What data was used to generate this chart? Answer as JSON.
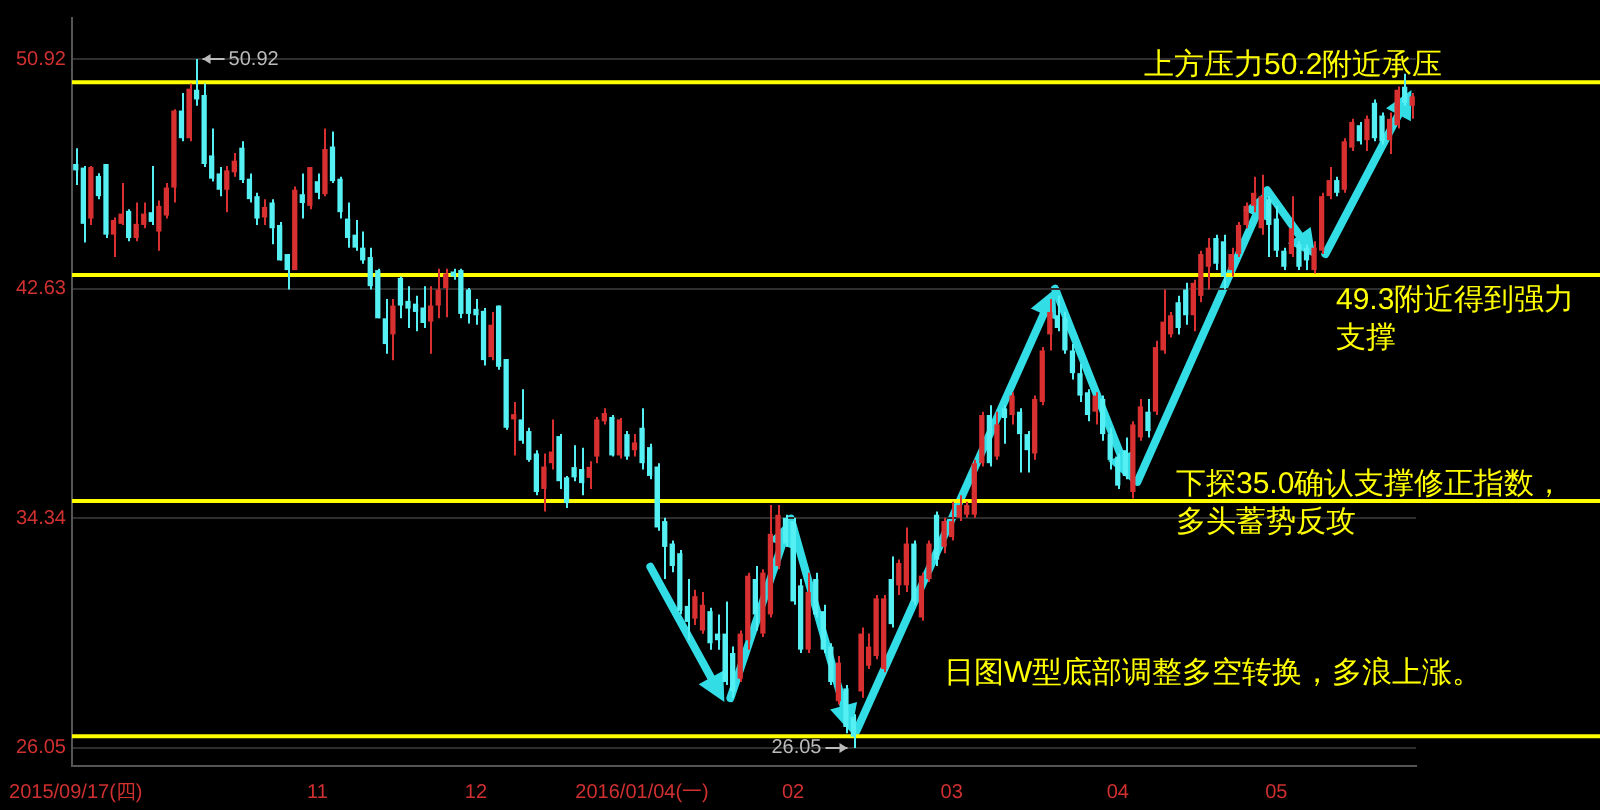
{
  "chart_data": {
    "type": "candlestick",
    "categories": [
      "2015/09/17(四)",
      null,
      null,
      null,
      null,
      null,
      null,
      null,
      null,
      null,
      null,
      null,
      null,
      null,
      null,
      null,
      null,
      null,
      null,
      null,
      null,
      null,
      null,
      null,
      null,
      null,
      null,
      null,
      null,
      null,
      null,
      null,
      "11",
      null,
      null,
      null,
      null,
      null,
      null,
      null,
      null,
      null,
      null,
      null,
      null,
      null,
      null,
      null,
      null,
      null,
      null,
      null,
      null,
      "12",
      null,
      null,
      null,
      null,
      null,
      null,
      null,
      null,
      null,
      null,
      null,
      null,
      null,
      null,
      null,
      null,
      null,
      null,
      null,
      null,
      null,
      "2016/01/04(一)",
      null,
      null,
      null,
      null,
      null,
      null,
      null,
      null,
      null,
      null,
      null,
      null,
      null,
      null,
      null,
      null,
      null,
      null,
      null,
      "02",
      null,
      null,
      null,
      null,
      null,
      null,
      null,
      null,
      null,
      null,
      null,
      null,
      null,
      null,
      null,
      null,
      null,
      null,
      null,
      null,
      "03",
      null,
      null,
      null,
      null,
      null,
      null,
      null,
      null,
      null,
      null,
      null,
      null,
      null,
      null,
      null,
      null,
      null,
      null,
      null,
      null,
      null,
      "04",
      null,
      null,
      null,
      null,
      null,
      null,
      null,
      null,
      null,
      null,
      null,
      null,
      null,
      null,
      null,
      null,
      null,
      null,
      null,
      null,
      "05",
      null,
      null,
      null,
      null,
      null,
      null,
      null,
      null,
      null,
      null,
      null,
      null,
      null,
      null,
      null,
      null,
      null,
      null
    ],
    "ohlc": [
      [
        47.13,
        47.7,
        46.37,
        46.9
      ],
      [
        47.0,
        47.06,
        44.3,
        44.97
      ],
      [
        45.16,
        47.06,
        44.93,
        47.02
      ],
      [
        46.7,
        46.8,
        45.86,
        45.97
      ],
      [
        47.13,
        47.13,
        44.46,
        44.58
      ],
      [
        44.58,
        45.2,
        43.77,
        45.11
      ],
      [
        44.97,
        46.44,
        44.93,
        45.34
      ],
      [
        45.44,
        45.5,
        44.34,
        44.46
      ],
      [
        44.46,
        45.74,
        44.34,
        44.97
      ],
      [
        44.93,
        45.74,
        44.81,
        45.34
      ],
      [
        45.39,
        47.06,
        44.93,
        45.04
      ],
      [
        44.69,
        45.81,
        44.0,
        45.62
      ],
      [
        45.27,
        46.44,
        45.16,
        46.28
      ],
      [
        46.28,
        49.11,
        45.74,
        49.06
      ],
      [
        49.06,
        49.69,
        47.95,
        48.06
      ],
      [
        48.06,
        50.04,
        47.95,
        49.85
      ],
      [
        49.81,
        50.92,
        49.23,
        49.46
      ],
      [
        49.62,
        50.04,
        47.02,
        47.13
      ],
      [
        47.44,
        48.41,
        46.5,
        46.6
      ],
      [
        46.79,
        47.02,
        45.97,
        46.2
      ],
      [
        46.2,
        47.06,
        45.39,
        46.9
      ],
      [
        46.83,
        47.53,
        46.67,
        47.25
      ],
      [
        47.72,
        47.95,
        46.44,
        46.55
      ],
      [
        46.6,
        46.79,
        45.74,
        45.86
      ],
      [
        45.97,
        46.09,
        44.93,
        45.16
      ],
      [
        45.2,
        45.86,
        44.93,
        45.58
      ],
      [
        45.74,
        45.86,
        44.23,
        44.81
      ],
      [
        44.93,
        45.04,
        43.65,
        43.65
      ],
      [
        43.88,
        43.88,
        42.6,
        43.3
      ],
      [
        43.3,
        46.32,
        43.3,
        46.2
      ],
      [
        46.04,
        46.79,
        45.16,
        45.72
      ],
      [
        45.62,
        47.02,
        45.5,
        47.02
      ],
      [
        46.51,
        46.79,
        45.86,
        46.09
      ],
      [
        46.04,
        48.41,
        45.97,
        47.67
      ],
      [
        47.76,
        48.3,
        46.44,
        46.51
      ],
      [
        46.6,
        46.67,
        45.16,
        45.39
      ],
      [
        45.16,
        45.74,
        44.11,
        44.46
      ],
      [
        44.58,
        45.11,
        44.0,
        44.11
      ],
      [
        44.11,
        44.69,
        43.53,
        43.65
      ],
      [
        43.77,
        44.11,
        42.6,
        42.72
      ],
      [
        43.3,
        43.35,
        41.56,
        41.56
      ],
      [
        41.56,
        42.26,
        40.28,
        40.63
      ],
      [
        40.98,
        42.26,
        40.05,
        42.02
      ],
      [
        43.02,
        43.07,
        41.56,
        42.02
      ],
      [
        42.19,
        42.72,
        41.21,
        41.91
      ],
      [
        42.09,
        42.37,
        41.09,
        41.79
      ],
      [
        41.95,
        42.72,
        41.21,
        41.39
      ],
      [
        41.44,
        42.72,
        40.28,
        42.02
      ],
      [
        42.02,
        43.35,
        41.56,
        42.6
      ],
      [
        42.65,
        43.35,
        41.6,
        43.18
      ],
      [
        43.25,
        43.35,
        42.95,
        43.07
      ],
      [
        43.3,
        43.35,
        41.56,
        41.72
      ],
      [
        42.6,
        42.65,
        41.37,
        41.72
      ],
      [
        41.9,
        42.26,
        41.33,
        41.67
      ],
      [
        41.83,
        41.93,
        39.86,
        40.05
      ],
      [
        40.16,
        41.79,
        40.05,
        41.33
      ],
      [
        42.02,
        42.02,
        39.7,
        39.81
      ],
      [
        40.09,
        40.09,
        37.54,
        37.61
      ],
      [
        37.91,
        38.54,
        36.61,
        38.1
      ],
      [
        37.91,
        39.0,
        37.03,
        37.14
      ],
      [
        37.49,
        37.61,
        36.38,
        36.45
      ],
      [
        36.68,
        36.8,
        35.17,
        35.29
      ],
      [
        35.4,
        36.68,
        34.59,
        36.21
      ],
      [
        36.33,
        37.91,
        36.1,
        36.75
      ],
      [
        37.31,
        37.38,
        35.4,
        35.68
      ],
      [
        35.82,
        35.87,
        34.71,
        34.89
      ],
      [
        36.19,
        36.98,
        35.68,
        35.82
      ],
      [
        36.12,
        36.89,
        35.17,
        35.61
      ],
      [
        35.8,
        36.4,
        35.4,
        36.2
      ],
      [
        36.57,
        38.0,
        36.33,
        37.91
      ],
      [
        37.84,
        38.31,
        37.73,
        38.14
      ],
      [
        38.0,
        38.07,
        36.57,
        36.61
      ],
      [
        36.61,
        37.96,
        36.5,
        37.91
      ],
      [
        37.38,
        37.49,
        36.45,
        36.57
      ],
      [
        36.8,
        37.38,
        36.57,
        37.08
      ],
      [
        37.61,
        38.31,
        36.1,
        36.33
      ],
      [
        36.91,
        37.03,
        35.75,
        35.87
      ],
      [
        36.21,
        36.33,
        33.89,
        34.01
      ],
      [
        34.24,
        34.36,
        32.15,
        33.31
      ],
      [
        33.43,
        33.54,
        32.39,
        32.62
      ],
      [
        33.08,
        33.2,
        30.88,
        31.0
      ],
      [
        31.18,
        32.15,
        29.94,
        30.6
      ],
      [
        30.72,
        31.76,
        30.49,
        31.53
      ],
      [
        30.29,
        31.68,
        30.17,
        31.22
      ],
      [
        30.99,
        31.11,
        29.6,
        29.83
      ],
      [
        30.18,
        30.87,
        29.6,
        29.94
      ],
      [
        30.18,
        31.34,
        28.32,
        28.43
      ],
      [
        29.48,
        29.71,
        27.86,
        28.09
      ],
      [
        28.55,
        30.29,
        28.43,
        30.18
      ],
      [
        29.94,
        32.38,
        29.6,
        32.27
      ],
      [
        32.15,
        32.62,
        30.29,
        30.87
      ],
      [
        30.18,
        32.5,
        30.06,
        32.38
      ],
      [
        30.87,
        34.82,
        30.76,
        33.78
      ],
      [
        32.62,
        34.82,
        32.5,
        34.47
      ],
      [
        34.36,
        34.47,
        33.31,
        33.43
      ],
      [
        34.24,
        34.36,
        31.22,
        31.34
      ],
      [
        31.92,
        32.15,
        29.48,
        29.6
      ],
      [
        29.6,
        32.38,
        29.48,
        31.68
      ],
      [
        32.15,
        32.38,
        30.76,
        30.87
      ],
      [
        30.99,
        31.22,
        29.48,
        29.6
      ],
      [
        29.71,
        29.83,
        28.32,
        28.43
      ],
      [
        27.74,
        29.37,
        27.62,
        29.13
      ],
      [
        28.2,
        28.32,
        26.58,
        26.81
      ],
      [
        27.16,
        27.27,
        26.05,
        26.46
      ],
      [
        28.09,
        30.4,
        27.86,
        30.18
      ],
      [
        29.02,
        30.18,
        28.9,
        29.71
      ],
      [
        29.37,
        31.57,
        29.25,
        31.45
      ],
      [
        28.9,
        31.57,
        28.78,
        31.45
      ],
      [
        32.15,
        32.96,
        30.4,
        30.52
      ],
      [
        31.92,
        32.85,
        31.57,
        32.73
      ],
      [
        31.92,
        34.01,
        31.68,
        33.43
      ],
      [
        33.43,
        33.54,
        31.22,
        31.34
      ],
      [
        30.76,
        32.38,
        30.64,
        32.27
      ],
      [
        32.15,
        33.54,
        32.04,
        33.43
      ],
      [
        34.47,
        34.59,
        32.62,
        32.85
      ],
      [
        33.31,
        34.36,
        33.08,
        34.24
      ],
      [
        33.66,
        34.94,
        33.54,
        34.24
      ],
      [
        34.36,
        35.17,
        34.24,
        34.82
      ],
      [
        34.47,
        34.94,
        34.36,
        34.82
      ],
      [
        34.47,
        36.45,
        34.36,
        36.33
      ],
      [
        36.33,
        38.19,
        36.21,
        38.07
      ],
      [
        38.07,
        38.42,
        36.21,
        36.33
      ],
      [
        36.57,
        38.19,
        36.45,
        37.73
      ],
      [
        38.31,
        38.42,
        37.03,
        37.96
      ],
      [
        38.07,
        38.89,
        37.73,
        38.77
      ],
      [
        38.19,
        38.31,
        35.99,
        37.38
      ],
      [
        37.38,
        37.49,
        35.99,
        36.8
      ],
      [
        36.68,
        38.77,
        36.45,
        38.65
      ],
      [
        38.54,
        40.52,
        38.42,
        40.4
      ],
      [
        40.98,
        42.26,
        40.4,
        41.79
      ],
      [
        41.67,
        42.37,
        41.09,
        41.21
      ],
      [
        41.56,
        41.79,
        40.28,
        40.4
      ],
      [
        40.4,
        40.63,
        39.35,
        39.58
      ],
      [
        39.58,
        39.93,
        38.54,
        38.77
      ],
      [
        38.89,
        39.0,
        37.84,
        38.07
      ],
      [
        38.19,
        38.89,
        37.73,
        38.77
      ],
      [
        38.65,
        38.77,
        37.14,
        37.38
      ],
      [
        37.38,
        37.61,
        36.1,
        36.45
      ],
      [
        36.57,
        36.68,
        35.4,
        35.52
      ],
      [
        36.8,
        37.26,
        35.75,
        35.87
      ],
      [
        35.29,
        37.84,
        35.06,
        37.73
      ],
      [
        37.26,
        38.65,
        37.14,
        38.38
      ],
      [
        38.19,
        38.65,
        37.26,
        37.49
      ],
      [
        38.19,
        40.75,
        38.07,
        40.52
      ],
      [
        40.4,
        42.6,
        40.28,
        41.44
      ],
      [
        40.98,
        41.79,
        40.87,
        41.67
      ],
      [
        42.14,
        42.37,
        40.98,
        41.21
      ],
      [
        42.6,
        42.84,
        41.33,
        41.67
      ],
      [
        41.67,
        42.95,
        41.09,
        42.84
      ],
      [
        42.37,
        44.0,
        42.14,
        43.88
      ],
      [
        43.42,
        44.46,
        42.6,
        44.11
      ],
      [
        44.46,
        44.58,
        43.3,
        43.53
      ],
      [
        44.34,
        44.58,
        42.6,
        43.07
      ],
      [
        43.3,
        44.11,
        43.07,
        43.88
      ],
      [
        43.88,
        45.04,
        43.77,
        44.93
      ],
      [
        44.93,
        45.74,
        44.81,
        45.62
      ],
      [
        45.62,
        46.67,
        45.39,
        46.09
      ],
      [
        44.81,
        46.74,
        44.58,
        45.97
      ],
      [
        45.86,
        45.97,
        43.77,
        44.93
      ],
      [
        45.16,
        45.62,
        43.77,
        44.0
      ],
      [
        44.0,
        44.11,
        43.3,
        43.42
      ],
      [
        43.88,
        45.97,
        43.77,
        44.81
      ],
      [
        44.23,
        44.34,
        43.3,
        43.42
      ],
      [
        44.11,
        44.23,
        43.3,
        43.65
      ],
      [
        43.3,
        44.34,
        43.18,
        44.11
      ],
      [
        44.0,
        46.09,
        43.88,
        45.97
      ],
      [
        45.97,
        47.02,
        45.86,
        46.55
      ],
      [
        46.55,
        46.67,
        45.97,
        46.09
      ],
      [
        46.2,
        48.06,
        46.09,
        47.95
      ],
      [
        47.72,
        48.76,
        47.6,
        48.65
      ],
      [
        48.53,
        48.65,
        47.83,
        47.95
      ],
      [
        47.99,
        48.88,
        47.6,
        48.76
      ],
      [
        49.34,
        49.46,
        47.95,
        48.06
      ],
      [
        48.88,
        48.99,
        47.83,
        47.95
      ],
      [
        47.99,
        48.99,
        47.49,
        48.76
      ],
      [
        48.53,
        49.93,
        48.41,
        49.81
      ],
      [
        49.92,
        50.39,
        49.23,
        49.34
      ],
      [
        49.23,
        49.69,
        48.76,
        49.57
      ]
    ],
    "ylim": [
      25.4,
      52.4
    ],
    "yticks": [
      26.05,
      34.34,
      42.63,
      50.92
    ],
    "grid": "y",
    "ref_lines": [
      {
        "axis": "y",
        "value": 50.08,
        "label": "上方压力50.2附近承压",
        "color": "#ffff00"
      },
      {
        "axis": "y",
        "value": 43.12,
        "label": "49.3附近得到强力支撑",
        "color": "#ffff00"
      },
      {
        "axis": "y",
        "value": 34.97,
        "label": "下探35.0确认支撑修正指数，多头蓄势反攻",
        "color": "#ffff00"
      },
      {
        "axis": "y",
        "value": 26.47,
        "color": "#ffff00"
      }
    ],
    "annotations": [
      "50.92",
      "26.05",
      "日图W型底部调整多空转换，多浪上涨。"
    ]
  }
}
